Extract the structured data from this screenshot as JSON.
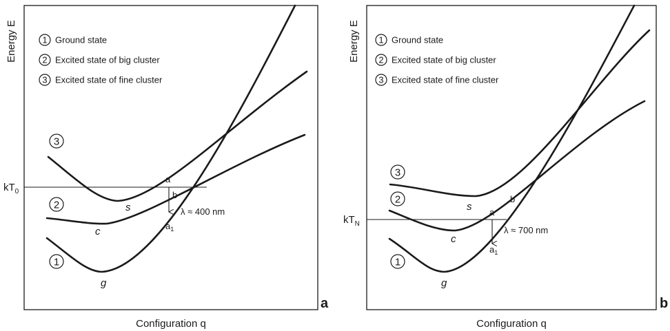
{
  "panels": [
    {
      "letter": "a",
      "y_axis_label": "Energy E",
      "x_axis_label": "Configuration q",
      "legend": [
        {
          "num": "1",
          "text": "Ground state"
        },
        {
          "num": "2",
          "text": "Excited state of big cluster"
        },
        {
          "num": "3",
          "text": "Excited state of fine cluster"
        }
      ],
      "level_label": {
        "main": "kT",
        "sub": "0"
      },
      "curve_numbers": [
        "3",
        "2",
        "1"
      ],
      "minima": {
        "s": "s",
        "c": "c",
        "g": "g"
      },
      "points": {
        "a": "a",
        "b": "b",
        "a1_main": "a",
        "a1_sub": "1"
      },
      "wavelength": "λ ≈ 400 nm"
    },
    {
      "letter": "b",
      "y_axis_label": "Energy E",
      "x_axis_label": "Configuration q",
      "legend": [
        {
          "num": "1",
          "text": "Ground state"
        },
        {
          "num": "2",
          "text": "Excited state of big cluster"
        },
        {
          "num": "3",
          "text": "Excited state of fine cluster"
        }
      ],
      "level_label": {
        "main": "kT",
        "sub": "N"
      },
      "curve_numbers": [
        "3",
        "2",
        "1"
      ],
      "minima": {
        "s": "s",
        "c": "c",
        "g": "g"
      },
      "points": {
        "a": "a",
        "b": "b",
        "a1_main": "a",
        "a1_sub": "1"
      },
      "wavelength": "λ ≈ 700 nm"
    }
  ]
}
